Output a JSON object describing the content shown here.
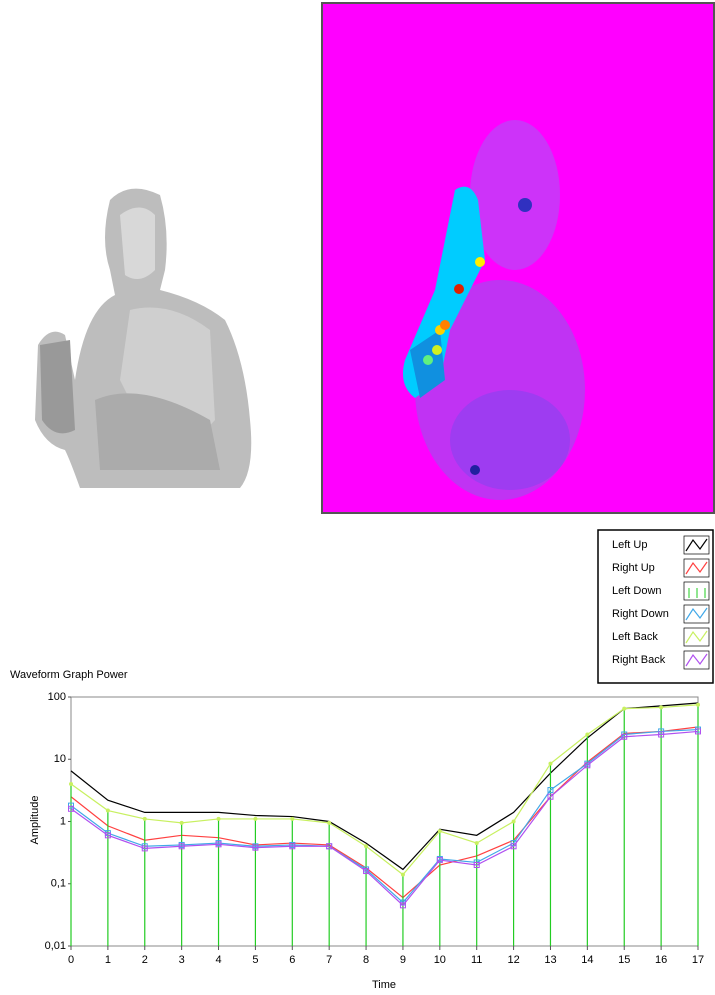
{
  "chart_data": {
    "type": "line",
    "title": "Waveform Graph Power",
    "x_label": "Time",
    "y_label": "Amplitude",
    "log_y": true,
    "legend": "top-right",
    "x": [
      0,
      1,
      2,
      3,
      4,
      5,
      6,
      7,
      8,
      9,
      10,
      11,
      12,
      13,
      14,
      15,
      16,
      17
    ],
    "xlim": [
      0,
      17
    ],
    "xticks": [
      0,
      1,
      2,
      3,
      4,
      5,
      6,
      7,
      8,
      9,
      10,
      11,
      12,
      13,
      14,
      15,
      16,
      17
    ],
    "ylim": [
      0.01,
      100
    ],
    "yticks": [
      {
        "value": 0.01,
        "label": "0,01"
      },
      {
        "value": 0.1,
        "label": "0,1"
      },
      1,
      10,
      100
    ],
    "series": [
      {
        "name": "Left Up",
        "color": "#000000",
        "values": [
          6.5,
          2.2,
          1.4,
          1.4,
          1.4,
          1.25,
          1.2,
          1.0,
          0.45,
          0.17,
          0.75,
          0.6,
          1.4,
          6,
          22,
          65,
          72,
          80
        ]
      },
      {
        "name": "Right Up",
        "color": "#ff4040",
        "values": [
          2.5,
          0.85,
          0.5,
          0.6,
          0.55,
          0.42,
          0.45,
          0.42,
          0.18,
          0.06,
          0.2,
          0.28,
          0.5,
          2.5,
          9,
          26,
          28,
          33
        ]
      },
      {
        "name": "Left Down",
        "color": "#22cc22",
        "style": "stick",
        "values": [
          4,
          1.5,
          1.1,
          0.95,
          1.1,
          1.1,
          1.1,
          0.95,
          0.4,
          0.14,
          0.7,
          0.45,
          1.0,
          8.5,
          25,
          65,
          68,
          75
        ]
      },
      {
        "name": "Right Down",
        "color": "#40a8e8",
        "marker": "square",
        "values": [
          1.8,
          0.65,
          0.4,
          0.42,
          0.45,
          0.4,
          0.42,
          0.4,
          0.17,
          0.05,
          0.25,
          0.22,
          0.45,
          3.2,
          8.5,
          25,
          28,
          30
        ]
      },
      {
        "name": "Left Back",
        "color": "#c8f060",
        "marker": "circle",
        "values": [
          4,
          1.5,
          1.1,
          0.95,
          1.1,
          1.1,
          1.1,
          0.95,
          0.4,
          0.14,
          0.7,
          0.45,
          1.0,
          8.5,
          25,
          65,
          68,
          75
        ]
      },
      {
        "name": "Right Back",
        "color": "#b050f0",
        "marker": "square",
        "values": [
          1.6,
          0.6,
          0.37,
          0.4,
          0.43,
          0.38,
          0.4,
          0.4,
          0.16,
          0.045,
          0.24,
          0.2,
          0.4,
          2.5,
          8,
          23,
          25,
          28
        ]
      }
    ]
  }
}
